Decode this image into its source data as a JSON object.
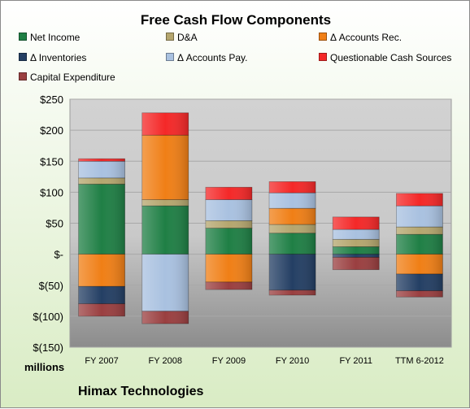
{
  "chart_data": {
    "type": "bar",
    "stacked": true,
    "title": "Free Cash Flow Components",
    "units": "millions",
    "company": "Himax Technologies",
    "categories": [
      "FY 2007",
      "FY 2008",
      "FY 2009",
      "FY 2010",
      "FY 2011",
      "TTM 6-2012"
    ],
    "ylim": [
      -150,
      250
    ],
    "yticks": [
      250,
      200,
      150,
      100,
      50,
      0,
      -50,
      -100,
      -150
    ],
    "ytick_labels": [
      "$250",
      "$200",
      "$150",
      "$100",
      "$50",
      "$-",
      "$(50)",
      "$(100)",
      "$(150)"
    ],
    "grid": true,
    "legend_placement": "top",
    "series": [
      {
        "name": "Net Income",
        "color": "#1f7f45",
        "values": [
          113,
          78,
          42,
          34,
          12,
          32
        ]
      },
      {
        "name": "D&A",
        "color": "#b5a66e",
        "values": [
          10,
          10,
          12,
          14,
          12,
          12
        ]
      },
      {
        "name": "Δ Accounts Rec.",
        "color": "#f07f16",
        "values": [
          -52,
          104,
          -45,
          26,
          0,
          -32
        ]
      },
      {
        "name": "Δ Inventories",
        "color": "#243f64",
        "values": [
          -28,
          0,
          0,
          -58,
          -5,
          -27
        ]
      },
      {
        "name": "Δ Accounts Pay.",
        "color": "#a9c1e0",
        "values": [
          27,
          -92,
          34,
          25,
          16,
          34
        ]
      },
      {
        "name": "Questionable Cash Sources",
        "color": "#f42828",
        "values": [
          4,
          36,
          20,
          18,
          20,
          20
        ]
      },
      {
        "name": "Capital Expenditure",
        "color": "#9a3f40",
        "values": [
          -20,
          -20,
          -12,
          -8,
          -20,
          -10
        ]
      }
    ]
  }
}
